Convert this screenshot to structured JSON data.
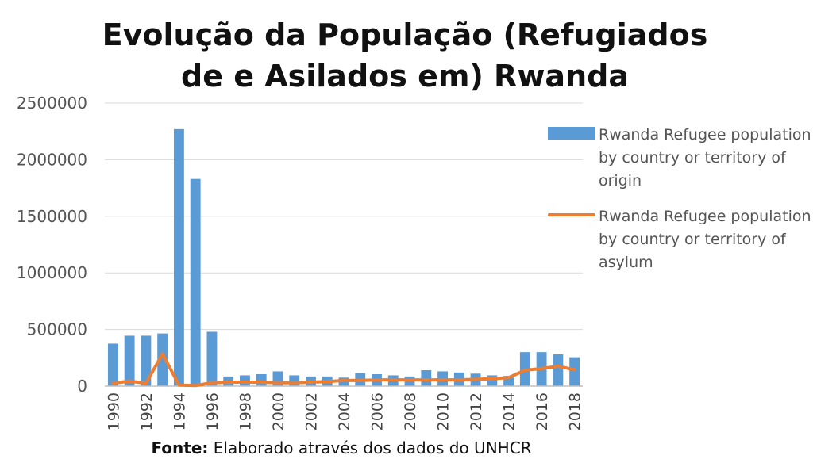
{
  "title_line1": "Evolução da População (Refugiados",
  "title_line2": "de e Asilados em) Rwanda",
  "source_label": "Fonte:",
  "source_text": " Elaborado através dos dados do UNHCR",
  "chart_data": {
    "type": "bar",
    "ylim": [
      0,
      2500000
    ],
    "yticks": [
      0,
      500000,
      1000000,
      1500000,
      2000000,
      2500000
    ],
    "grid": true,
    "legend_position": "right",
    "categories": [
      "1990",
      "1991",
      "1992",
      "1993",
      "1994",
      "1995",
      "1996",
      "1997",
      "1998",
      "1999",
      "2000",
      "2001",
      "2002",
      "2003",
      "2004",
      "2005",
      "2006",
      "2007",
      "2008",
      "2009",
      "2010",
      "2011",
      "2012",
      "2013",
      "2014",
      "2015",
      "2016",
      "2017",
      "2018"
    ],
    "xtick_labels": [
      "1990",
      "1992",
      "1994",
      "1996",
      "1998",
      "2000",
      "2002",
      "2004",
      "2006",
      "2008",
      "2010",
      "2012",
      "2014",
      "2016",
      "2018"
    ],
    "series": [
      {
        "name": "Rwanda Refugee population by country or territory of origin",
        "type": "bar",
        "color": "#5b9bd5",
        "values": [
          375000,
          445000,
          445000,
          465000,
          2270000,
          1830000,
          480000,
          85000,
          95000,
          105000,
          130000,
          95000,
          85000,
          85000,
          75000,
          115000,
          105000,
          95000,
          85000,
          140000,
          130000,
          120000,
          110000,
          95000,
          90000,
          300000,
          300000,
          280000,
          255000
        ]
      },
      {
        "name": "Rwanda Refugee population by country or territory of asylum",
        "type": "line",
        "color": "#ed7d31",
        "values": [
          25000,
          45000,
          25000,
          285000,
          10000,
          5000,
          30000,
          35000,
          35000,
          35000,
          30000,
          30000,
          35000,
          40000,
          50000,
          50000,
          55000,
          55000,
          55000,
          55000,
          55000,
          55000,
          60000,
          65000,
          75000,
          140000,
          155000,
          175000,
          145000
        ]
      }
    ]
  }
}
